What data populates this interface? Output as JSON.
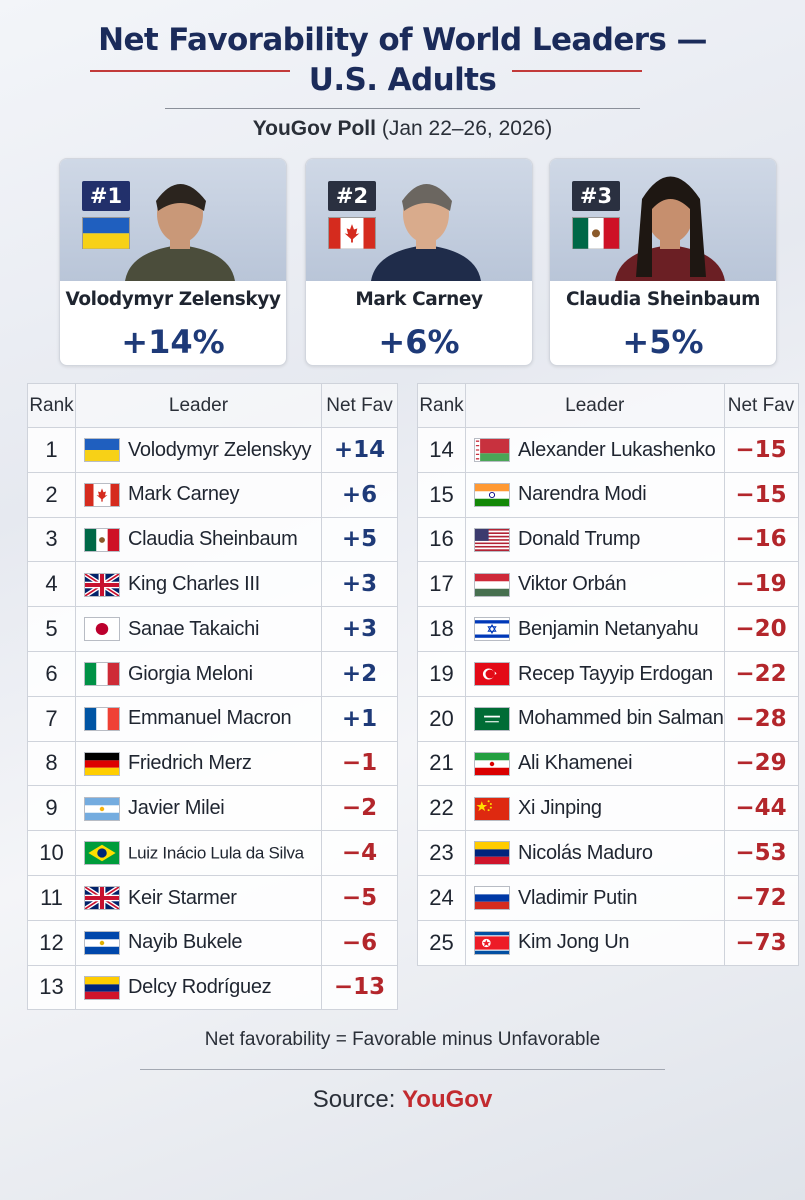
{
  "header": {
    "title_line1": "Net Favorability of World Leaders —",
    "title_line2": "U.S. Adults",
    "subtitle_brand": "YouGov Poll",
    "subtitle_dates": "(Jan 22–26, 2026)"
  },
  "top_cards": [
    {
      "rank": "#1",
      "name": "Volodymyr Zelenskyy",
      "value": "+14%",
      "flag": "ukraine"
    },
    {
      "rank": "#2",
      "name": "Mark Carney",
      "value": "+6%",
      "flag": "canada"
    },
    {
      "rank": "#3",
      "name": "Claudia Sheinbaum",
      "value": "+5%",
      "flag": "mexico"
    }
  ],
  "table_headers": {
    "rank": "Rank",
    "leader": "Leader",
    "value": "Net Fav"
  },
  "chart_data": {
    "type": "table",
    "columns": [
      "Rank",
      "Leader",
      "Net Fav"
    ],
    "rows": [
      {
        "rank": "1",
        "leader": "Volodymyr Zelenskyy",
        "value": "+14",
        "flag": "ukraine"
      },
      {
        "rank": "2",
        "leader": "Mark Carney",
        "value": "+6",
        "flag": "canada"
      },
      {
        "rank": "3",
        "leader": "Claudia Sheinbaum",
        "value": "+5",
        "flag": "mexico"
      },
      {
        "rank": "4",
        "leader": "King Charles III",
        "value": "+3",
        "flag": "uk"
      },
      {
        "rank": "5",
        "leader": "Sanae Takaichi",
        "value": "+3",
        "flag": "japan"
      },
      {
        "rank": "6",
        "leader": "Giorgia Meloni",
        "value": "+2",
        "flag": "italy"
      },
      {
        "rank": "7",
        "leader": "Emmanuel Macron",
        "value": "+1",
        "flag": "france"
      },
      {
        "rank": "8",
        "leader": "Friedrich Merz",
        "value": "−1",
        "flag": "germany"
      },
      {
        "rank": "9",
        "leader": "Javier Milei",
        "value": "−2",
        "flag": "argentina"
      },
      {
        "rank": "10",
        "leader": "Luiz Inácio Lula da Silva",
        "value": "−4",
        "flag": "brazil"
      },
      {
        "rank": "11",
        "leader": "Keir Starmer",
        "value": "−5",
        "flag": "uk"
      },
      {
        "rank": "12",
        "leader": "Nayib Bukele",
        "value": "−6",
        "flag": "elsalvador"
      },
      {
        "rank": "13",
        "leader": "Delcy Rodríguez",
        "value": "−13",
        "flag": "venezuela"
      },
      {
        "rank": "14",
        "leader": "Alexander Lukashenko",
        "value": "−15",
        "flag": "belarus"
      },
      {
        "rank": "15",
        "leader": "Narendra Modi",
        "value": "−15",
        "flag": "india"
      },
      {
        "rank": "16",
        "leader": "Donald Trump",
        "value": "−16",
        "flag": "usa"
      },
      {
        "rank": "17",
        "leader": "Viktor Orbán",
        "value": "−19",
        "flag": "hungary"
      },
      {
        "rank": "18",
        "leader": "Benjamin Netanyahu",
        "value": "−20",
        "flag": "israel"
      },
      {
        "rank": "19",
        "leader": "Recep Tayyip Erdogan",
        "value": "−22",
        "flag": "turkey"
      },
      {
        "rank": "20",
        "leader": "Mohammed bin Salman",
        "value": "−28",
        "flag": "saudi"
      },
      {
        "rank": "21",
        "leader": "Ali Khamenei",
        "value": "−29",
        "flag": "iran"
      },
      {
        "rank": "22",
        "leader": "Xi Jinping",
        "value": "−44",
        "flag": "china"
      },
      {
        "rank": "23",
        "leader": "Nicolás Maduro",
        "value": "−53",
        "flag": "venezuela"
      },
      {
        "rank": "24",
        "leader": "Vladimir Putin",
        "value": "−72",
        "flag": "russia"
      },
      {
        "rank": "25",
        "leader": "Kim Jong Un",
        "value": "−73",
        "flag": "northkorea"
      }
    ]
  },
  "footer": {
    "note": "Net favorability = Favorable minus Unfavorable",
    "source_label": "Source:",
    "source_brand": "YouGov"
  },
  "colors": {
    "positive": "#1e3a78",
    "negative": "#b3262b",
    "title": "#1b2b5a",
    "brand": "#c22a2f"
  }
}
